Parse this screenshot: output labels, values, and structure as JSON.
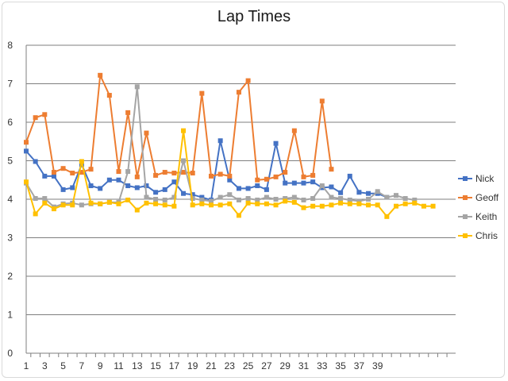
{
  "chart_data": {
    "type": "line",
    "title": "Lap Times",
    "xlabel": "",
    "ylabel": "",
    "ylim": [
      0,
      8
    ],
    "yticks": [
      0,
      1,
      2,
      3,
      4,
      5,
      6,
      7,
      8
    ],
    "xtick_labels": [
      "1",
      "3",
      "5",
      "7",
      "9",
      "11",
      "13",
      "15",
      "17",
      "19",
      "21",
      "23",
      "25",
      "27",
      "29",
      "31",
      "33",
      "35",
      "37",
      "39"
    ],
    "grid": "horizontal",
    "legend_position": "right",
    "series": [
      {
        "name": "Nick",
        "color": "#4472c4",
        "marker": "square",
        "values": [
          5.25,
          4.98,
          4.6,
          4.6,
          4.25,
          4.3,
          4.9,
          4.35,
          4.28,
          4.5,
          4.5,
          4.35,
          4.3,
          4.35,
          4.18,
          4.25,
          4.45,
          4.15,
          4.12,
          4.05,
          3.98,
          5.52,
          4.5,
          4.28,
          4.28,
          4.35,
          4.25,
          5.45,
          4.42,
          4.42,
          4.42,
          4.45,
          4.3,
          4.32,
          4.17,
          4.6,
          4.18,
          4.15,
          4.15,
          4.05
        ]
      },
      {
        "name": "Geoff",
        "color": "#ed7d31",
        "marker": "square",
        "values": [
          5.48,
          6.12,
          6.2,
          4.7,
          4.8,
          4.68,
          4.7,
          4.78,
          7.22,
          6.7,
          4.72,
          6.25,
          4.58,
          5.72,
          4.62,
          4.7,
          4.68,
          4.7,
          4.68,
          6.75,
          4.6,
          4.65,
          4.6,
          6.78,
          7.08,
          4.5,
          4.52,
          4.58,
          4.7,
          5.78,
          4.58,
          4.62,
          6.55,
          4.78
        ]
      },
      {
        "name": "Keith",
        "color": "#a5a5a5",
        "marker": "square",
        "values": [
          4.42,
          4.02,
          4.02,
          3.8,
          3.88,
          3.9,
          3.85,
          3.88,
          3.88,
          3.92,
          3.92,
          4.72,
          6.92,
          4.05,
          4.0,
          3.98,
          4.05,
          5.0,
          4.02,
          3.98,
          3.95,
          4.05,
          4.12,
          3.98,
          4.02,
          3.98,
          4.05,
          4.0,
          4.02,
          4.05,
          3.98,
          4.02,
          4.35,
          4.05,
          4.02,
          3.98,
          3.95,
          4.0,
          4.2,
          4.05,
          4.1,
          4.02,
          3.98
        ]
      },
      {
        "name": "Chris",
        "color": "#ffc000",
        "marker": "square",
        "values": [
          4.45,
          3.62,
          3.9,
          3.75,
          3.85,
          3.85,
          4.98,
          3.9,
          3.88,
          3.92,
          3.88,
          3.98,
          3.72,
          3.9,
          3.88,
          3.85,
          3.82,
          5.78,
          3.85,
          3.88,
          3.85,
          3.85,
          3.88,
          3.58,
          3.9,
          3.88,
          3.88,
          3.85,
          3.95,
          3.92,
          3.78,
          3.82,
          3.82,
          3.85,
          3.9,
          3.88,
          3.88,
          3.85,
          3.85,
          3.55,
          3.82,
          3.88,
          3.9,
          3.82,
          3.82
        ]
      }
    ]
  }
}
